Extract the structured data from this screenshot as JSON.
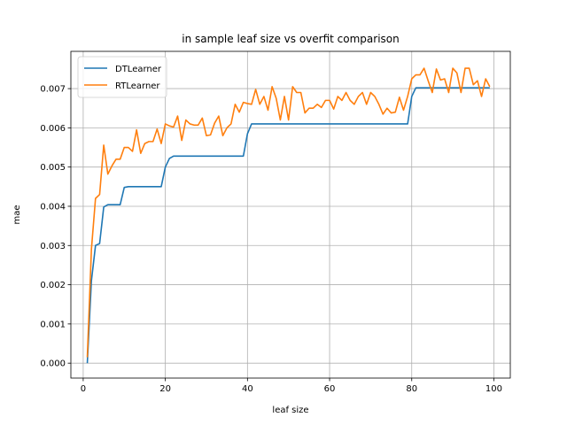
{
  "chart_data": {
    "type": "line",
    "title": "in sample leaf size vs overfit comparison",
    "xlabel": "leaf size",
    "ylabel": "mae",
    "xlim": [
      -3,
      104
    ],
    "ylim": [
      -0.00038,
      0.00795
    ],
    "xticks": [
      0,
      20,
      40,
      60,
      80,
      100
    ],
    "yticks": [
      0.0,
      0.001,
      0.002,
      0.003,
      0.004,
      0.005,
      0.006,
      0.007
    ],
    "ytick_labels": [
      "0.000",
      "0.001",
      "0.002",
      "0.003",
      "0.004",
      "0.005",
      "0.006",
      "0.007"
    ],
    "grid": true,
    "legend_position": "top-left",
    "x": [
      1,
      2,
      3,
      4,
      5,
      6,
      7,
      8,
      9,
      10,
      11,
      12,
      13,
      14,
      15,
      16,
      17,
      18,
      19,
      20,
      21,
      22,
      23,
      24,
      25,
      26,
      27,
      28,
      29,
      30,
      31,
      32,
      33,
      34,
      35,
      36,
      37,
      38,
      39,
      40,
      41,
      42,
      43,
      44,
      45,
      46,
      47,
      48,
      49,
      50,
      51,
      52,
      53,
      54,
      55,
      56,
      57,
      58,
      59,
      60,
      61,
      62,
      63,
      64,
      65,
      66,
      67,
      68,
      69,
      70,
      71,
      72,
      73,
      74,
      75,
      76,
      77,
      78,
      79,
      80,
      81,
      82,
      83,
      84,
      85,
      86,
      87,
      88,
      89,
      90,
      91,
      92,
      93,
      94,
      95,
      96,
      97,
      98,
      99
    ],
    "series": [
      {
        "name": "DTLearner",
        "color": "#1f77b4",
        "values": [
          0.0,
          0.0021,
          0.003,
          0.00305,
          0.00398,
          0.00404,
          0.00404,
          0.00404,
          0.00404,
          0.00448,
          0.0045,
          0.0045,
          0.0045,
          0.0045,
          0.0045,
          0.0045,
          0.0045,
          0.0045,
          0.0045,
          0.005,
          0.00522,
          0.00528,
          0.00528,
          0.00528,
          0.00528,
          0.00528,
          0.00528,
          0.00528,
          0.00528,
          0.00528,
          0.00528,
          0.00528,
          0.00528,
          0.00528,
          0.00528,
          0.00528,
          0.00528,
          0.00528,
          0.00528,
          0.00585,
          0.0061,
          0.0061,
          0.0061,
          0.0061,
          0.0061,
          0.0061,
          0.0061,
          0.0061,
          0.0061,
          0.0061,
          0.0061,
          0.0061,
          0.0061,
          0.0061,
          0.0061,
          0.0061,
          0.0061,
          0.0061,
          0.0061,
          0.0061,
          0.0061,
          0.0061,
          0.0061,
          0.0061,
          0.0061,
          0.0061,
          0.0061,
          0.0061,
          0.0061,
          0.0061,
          0.0061,
          0.0061,
          0.0061,
          0.0061,
          0.0061,
          0.0061,
          0.0061,
          0.0061,
          0.0061,
          0.0068,
          0.00702,
          0.00702,
          0.00702,
          0.00702,
          0.00702,
          0.00702,
          0.00702,
          0.00702,
          0.00702,
          0.00702,
          0.00702,
          0.00702,
          0.00702,
          0.00702,
          0.00702,
          0.00702,
          0.00702,
          0.00702,
          0.00702
        ]
      },
      {
        "name": "RTLearner",
        "color": "#ff7f0e",
        "values": [
          0.00015,
          0.0029,
          0.0042,
          0.0043,
          0.00556,
          0.00482,
          0.00503,
          0.0052,
          0.0052,
          0.0055,
          0.0055,
          0.0054,
          0.00595,
          0.00535,
          0.0056,
          0.00565,
          0.00565,
          0.00597,
          0.0056,
          0.0061,
          0.00605,
          0.00602,
          0.0063,
          0.00568,
          0.0062,
          0.0061,
          0.00607,
          0.00607,
          0.00625,
          0.0058,
          0.00582,
          0.00612,
          0.0063,
          0.0058,
          0.006,
          0.0061,
          0.0066,
          0.0064,
          0.00665,
          0.00662,
          0.0066,
          0.00698,
          0.0066,
          0.0068,
          0.00645,
          0.00705,
          0.00675,
          0.0062,
          0.0068,
          0.0062,
          0.00705,
          0.0069,
          0.0069,
          0.00638,
          0.0065,
          0.0065,
          0.0066,
          0.00652,
          0.0067,
          0.0067,
          0.00648,
          0.0068,
          0.0067,
          0.0069,
          0.0067,
          0.0066,
          0.0068,
          0.0069,
          0.0066,
          0.0069,
          0.0068,
          0.0066,
          0.00635,
          0.0065,
          0.00638,
          0.0064,
          0.00678,
          0.00645,
          0.0068,
          0.00725,
          0.00735,
          0.00735,
          0.00752,
          0.0072,
          0.0069,
          0.0075,
          0.00722,
          0.00725,
          0.0069,
          0.00752,
          0.0074,
          0.0069,
          0.00752,
          0.00752,
          0.0071,
          0.0072,
          0.0068,
          0.00725,
          0.00705
        ]
      }
    ]
  }
}
